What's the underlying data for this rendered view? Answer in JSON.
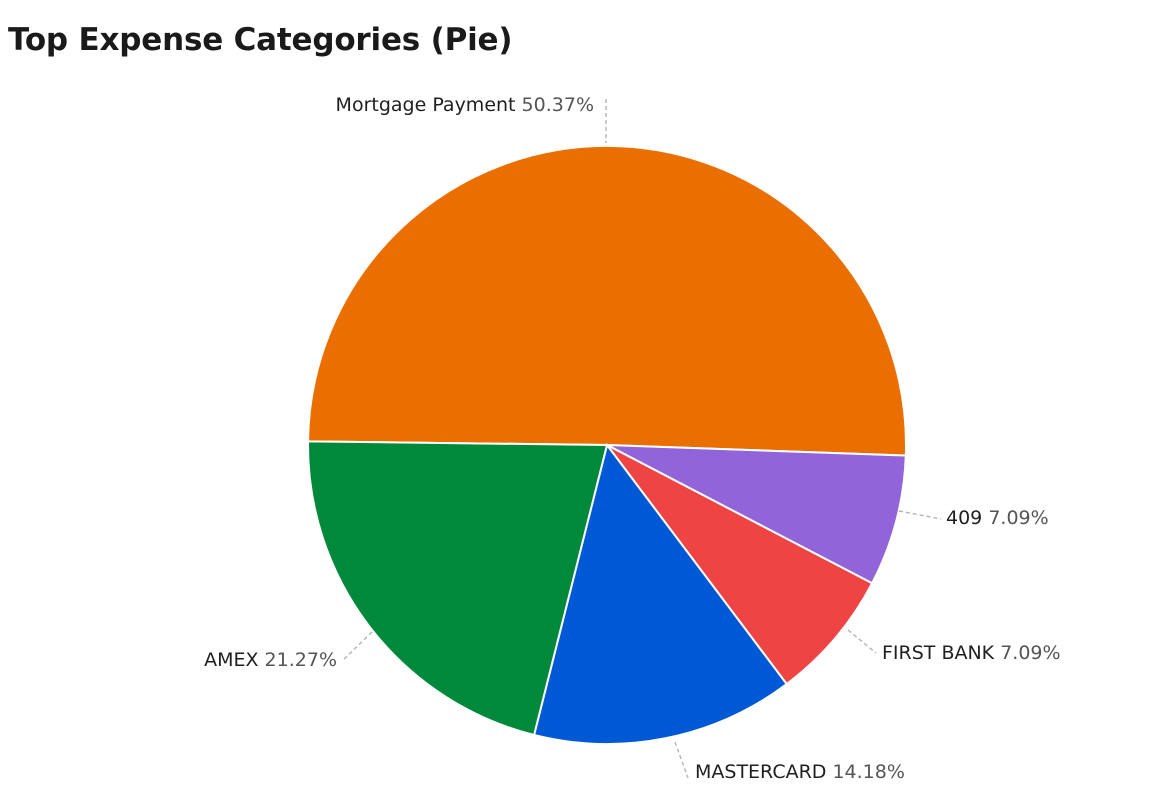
{
  "title": "Top Expense Categories (Pie)",
  "chart_data": {
    "type": "pie",
    "title": "Top Expense Categories (Pie)",
    "slices": [
      {
        "label": "Mortgage Payment",
        "value": 50.37,
        "pct_text": "50.37%",
        "color": "#eb6f00"
      },
      {
        "label": "409",
        "value": 7.09,
        "pct_text": "7.09%",
        "color": "#9165d9"
      },
      {
        "label": "FIRST BANK",
        "value": 7.09,
        "pct_text": "7.09%",
        "color": "#ef4444"
      },
      {
        "label": "MASTERCARD",
        "value": 14.18,
        "pct_text": "14.18%",
        "color": "#0059d4"
      },
      {
        "label": "AMEX",
        "value": 21.27,
        "pct_text": "21.27%",
        "color": "#00893b"
      }
    ]
  }
}
